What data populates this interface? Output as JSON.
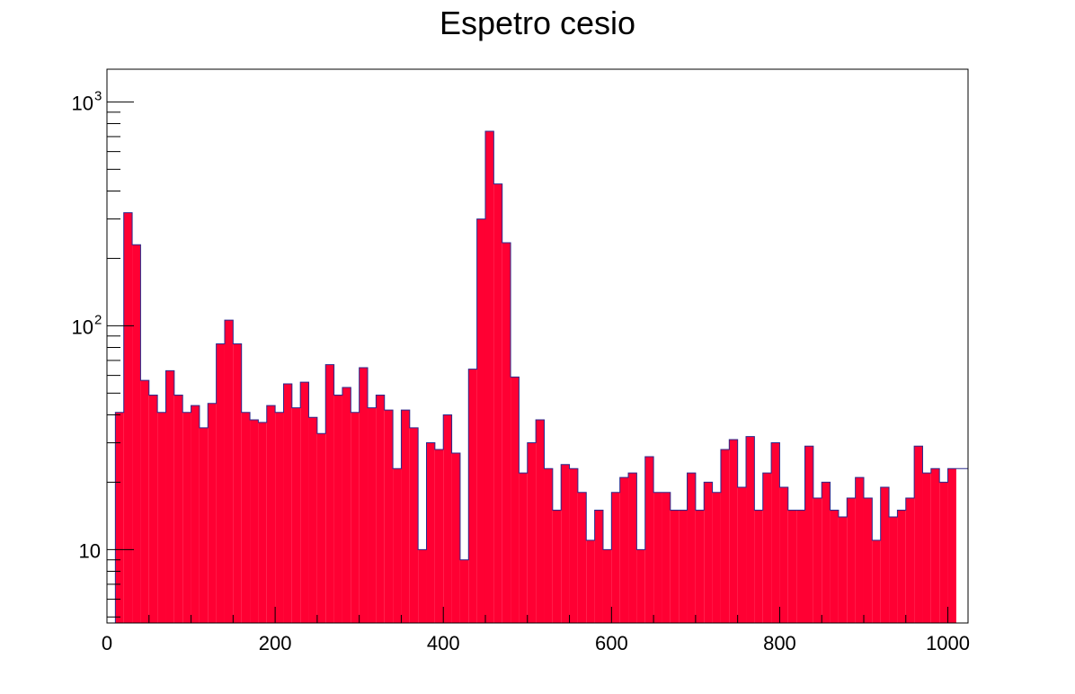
{
  "chart_data": {
    "type": "bar",
    "title": "Espetro cesio",
    "xlabel": "",
    "ylabel": "",
    "x_scale": "linear",
    "y_scale": "log",
    "xlim": [
      0,
      1024
    ],
    "ylim": [
      4.7,
      1400
    ],
    "grid": false,
    "fill_color": "#ff0033",
    "line_color": "#2a2a8c",
    "bin_width": 10,
    "bin_start": 0,
    "values": [
      0,
      41,
      320,
      230,
      57,
      49,
      41,
      63,
      49,
      41,
      44,
      35,
      45,
      83,
      106,
      83,
      41,
      38,
      37,
      44,
      41,
      55,
      43,
      56,
      39,
      33,
      67,
      49,
      53,
      41,
      65,
      43,
      49,
      42,
      23,
      42,
      35,
      10,
      30,
      28,
      40,
      27,
      9,
      64,
      300,
      740,
      430,
      235,
      59,
      22,
      30,
      38,
      23,
      15,
      24,
      23,
      18,
      11,
      15,
      10,
      18,
      21,
      22,
      10,
      26,
      18,
      18,
      15,
      15,
      22,
      15,
      20,
      18,
      28,
      31,
      19,
      32,
      15,
      22,
      30,
      19,
      15,
      15,
      29,
      17,
      20,
      15,
      14,
      17,
      21,
      17,
      11,
      19,
      14,
      15,
      17,
      29,
      22,
      23,
      20,
      23
    ],
    "x_ticks": [
      {
        "value": 0,
        "label": "0"
      },
      {
        "value": 200,
        "label": "200"
      },
      {
        "value": 400,
        "label": "400"
      },
      {
        "value": 600,
        "label": "600"
      },
      {
        "value": 800,
        "label": "800"
      },
      {
        "value": 1000,
        "label": "1000"
      }
    ],
    "y_ticks": [
      {
        "value": 10,
        "base": "10",
        "exp": ""
      },
      {
        "value": 100,
        "base": "10",
        "exp": "2"
      },
      {
        "value": 1000,
        "base": "10",
        "exp": "3"
      }
    ]
  }
}
